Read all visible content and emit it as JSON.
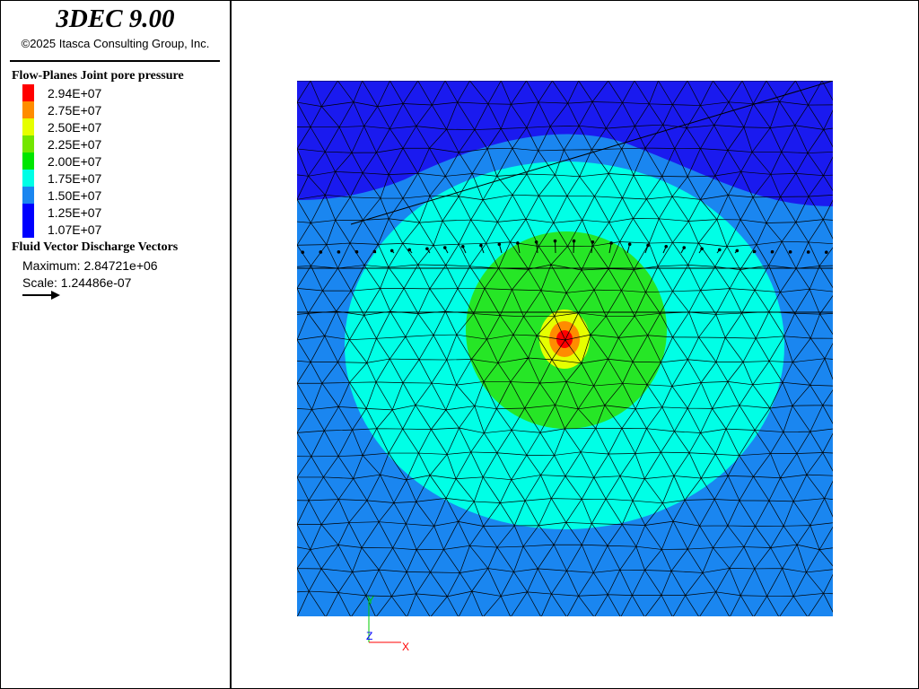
{
  "header": {
    "app_title": "3DEC 9.00",
    "copyright": "©2025 Itasca Consulting Group, Inc."
  },
  "contour_legend": {
    "title": "Flow-Planes Joint pore pressure",
    "entries": [
      {
        "label": "2.94E+07",
        "color": "#ff0000"
      },
      {
        "label": "2.75E+07",
        "color": "#ff8c00"
      },
      {
        "label": "2.50E+07",
        "color": "#e6ff00"
      },
      {
        "label": "2.25E+07",
        "color": "#73e600"
      },
      {
        "label": "2.00E+07",
        "color": "#00e600"
      },
      {
        "label": "1.75E+07",
        "color": "#00ffe6"
      },
      {
        "label": "1.50E+07",
        "color": "#1a86f0"
      },
      {
        "label": "1.25E+07",
        "color": "#0000ff"
      },
      {
        "label": "1.07E+07",
        "color": "#0000ff"
      }
    ]
  },
  "vector_legend": {
    "title": "Fluid Vector Discharge Vectors",
    "maximum": "Maximum: 2.84721e+06",
    "scale": "Scale: 1.24486e-07",
    "arrow_icon": "arrow-right-icon"
  },
  "axes": {
    "y_label": "Y",
    "z_label": "Z",
    "x_label": "X",
    "y_color": "#00cc00",
    "z_color": "#0000ff",
    "x_color": "#ff0000"
  },
  "zone_colors": {
    "level_1": "#1a1aef",
    "level_2": "#1a86f0",
    "level_3": "#00ffe6",
    "level_4": "#26e626",
    "level_5": "#e6ff00",
    "level_6": "#ff8c00",
    "level_7": "#ff0000"
  }
}
